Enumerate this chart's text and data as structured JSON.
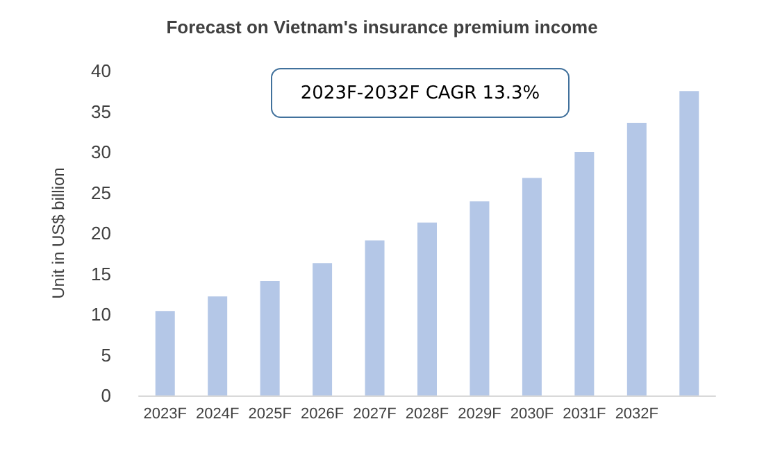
{
  "chart_data": {
    "type": "bar",
    "title": "Forecast on Vietnam's insurance premium income",
    "ylabel": "Unit in US$ billion",
    "categories": [
      "2023F",
      "2024F",
      "2025F",
      "2026F",
      "2027F",
      "2028F",
      "2029F",
      "2030F",
      "2031F",
      "2032F",
      null
    ],
    "values": [
      10.4,
      12.2,
      14.1,
      16.3,
      19.1,
      21.3,
      23.9,
      26.8,
      30.0,
      33.6,
      37.5
    ],
    "color": "#b4c7e7",
    "ylim": [
      0,
      40
    ],
    "yticks": [
      0,
      5,
      10,
      15,
      20,
      25,
      30,
      35,
      40
    ],
    "grid": false,
    "annotations": [
      "2023F-2032F CAGR 13.3%"
    ]
  }
}
